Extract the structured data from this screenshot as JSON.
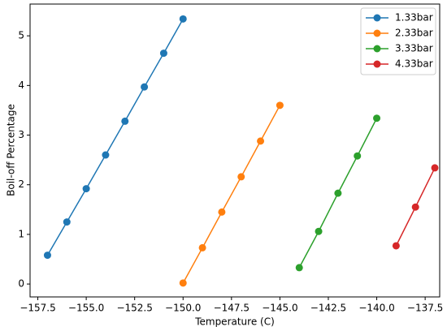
{
  "chart_data": {
    "type": "line",
    "x_label": "Temperature (C)",
    "y_label": "Boil-off Percentage",
    "xlim": [
      -157.9,
      -136.75
    ],
    "ylim": [
      -0.26,
      5.64
    ],
    "xticks": [
      {
        "value": -157.5,
        "label": "−157.5"
      },
      {
        "value": -155.0,
        "label": "−155.0"
      },
      {
        "value": -152.5,
        "label": "−152.5"
      },
      {
        "value": -150.0,
        "label": "−150.0"
      },
      {
        "value": -147.5,
        "label": "−147.5"
      },
      {
        "value": -145.0,
        "label": "−145.0"
      },
      {
        "value": -142.5,
        "label": "−142.5"
      },
      {
        "value": -140.0,
        "label": "−140.0"
      },
      {
        "value": -137.5,
        "label": "−137.5"
      }
    ],
    "yticks": [
      0,
      1,
      2,
      3,
      4,
      5
    ],
    "legend": "upper right",
    "series": [
      {
        "name": "1.33bar",
        "color": "#1f77b4",
        "x": [
          -157,
          -156,
          -155,
          -154,
          -153,
          -152,
          -151,
          -150
        ],
        "values": [
          0.58,
          1.25,
          1.92,
          2.6,
          3.28,
          3.97,
          4.65,
          5.34
        ]
      },
      {
        "name": "2.33bar",
        "color": "#ff7f0e",
        "x": [
          -150,
          -149,
          -148,
          -147,
          -146,
          -145
        ],
        "values": [
          0.02,
          0.73,
          1.45,
          2.16,
          2.88,
          3.6
        ]
      },
      {
        "name": "3.33bar",
        "color": "#2ca02c",
        "x": [
          -144,
          -143,
          -142,
          -141,
          -140
        ],
        "values": [
          0.33,
          1.06,
          1.83,
          2.58,
          3.34
        ]
      },
      {
        "name": "4.33bar",
        "color": "#d62728",
        "x": [
          -139,
          -138,
          -137
        ],
        "values": [
          0.77,
          1.55,
          2.34
        ]
      }
    ]
  }
}
